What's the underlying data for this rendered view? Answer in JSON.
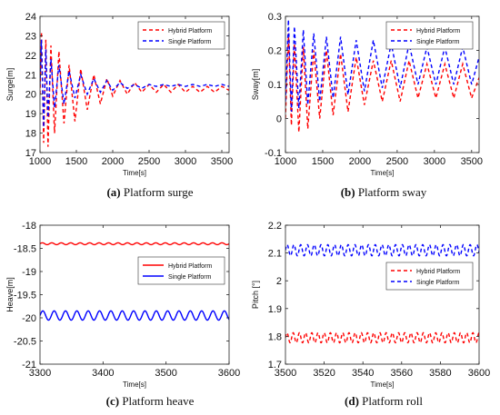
{
  "captions": [
    {
      "letter": "(a)",
      "text": "Platform surge"
    },
    {
      "letter": "(b)",
      "text": "Platform sway"
    },
    {
      "letter": "(c)",
      "text": "Platform heave"
    },
    {
      "letter": "(d)",
      "text": "Platform roll"
    }
  ],
  "chart_data": [
    {
      "type": "line",
      "xlabel": "Time[s]",
      "ylabel": "Surge[m]",
      "xlim": [
        1000,
        3600
      ],
      "ylim": [
        17,
        24
      ],
      "xticks": [
        1000,
        1500,
        2000,
        2500,
        3000,
        3500
      ],
      "yticks": [
        17,
        18,
        19,
        20,
        21,
        22,
        23,
        24
      ],
      "legend": "top-right",
      "grid": false,
      "series": [
        {
          "name": "Hybrid Platform",
          "color": "#ff0000",
          "dash": "dashed",
          "x": [
            1000,
            1020,
            1050,
            1080,
            1110,
            1150,
            1200,
            1260,
            1330,
            1400,
            1480,
            1560,
            1650,
            1740,
            1830,
            1920,
            2000,
            2100,
            2200,
            2300,
            2400,
            2500,
            2600,
            2700,
            2800,
            2900,
            3000,
            3100,
            3200,
            3300,
            3400,
            3500,
            3600
          ],
          "y": [
            20.0,
            23.2,
            17.5,
            22.8,
            17.3,
            22.5,
            18.0,
            22.2,
            18.5,
            21.5,
            18.6,
            21.3,
            19.2,
            21.0,
            19.5,
            20.8,
            19.9,
            20.7,
            20.0,
            20.6,
            20.1,
            20.5,
            20.1,
            20.5,
            20.1,
            20.5,
            20.1,
            20.4,
            20.1,
            20.4,
            20.1,
            20.4,
            20.2
          ]
        },
        {
          "name": "Single Platform",
          "color": "#0000ff",
          "dash": "dashed",
          "x": [
            1000,
            1020,
            1050,
            1080,
            1110,
            1150,
            1200,
            1260,
            1330,
            1400,
            1480,
            1560,
            1650,
            1740,
            1830,
            1920,
            2000,
            2100,
            2200,
            2300,
            2400,
            2500,
            2600,
            2700,
            2800,
            2900,
            3000,
            3100,
            3200,
            3300,
            3400,
            3500,
            3600
          ],
          "y": [
            20.5,
            22.8,
            18.3,
            22.3,
            18.8,
            21.8,
            19.3,
            21.5,
            19.5,
            21.2,
            19.8,
            21.0,
            20.0,
            20.8,
            20.1,
            20.7,
            20.2,
            20.6,
            20.3,
            20.5,
            20.3,
            20.5,
            20.4,
            20.5,
            20.4,
            20.5,
            20.4,
            20.5,
            20.4,
            20.5,
            20.4,
            20.5,
            20.4
          ]
        }
      ]
    },
    {
      "type": "line",
      "xlabel": "Time[s]",
      "ylabel": "Sway[m]",
      "xlim": [
        1000,
        3600
      ],
      "ylim": [
        -0.1,
        0.3
      ],
      "xticks": [
        1000,
        1500,
        2000,
        2500,
        3000,
        3500
      ],
      "yticks": [
        -0.1,
        0,
        0.1,
        0.2,
        0.3
      ],
      "legend": "top-right",
      "grid": false,
      "series": [
        {
          "name": "Hybrid Platform",
          "color": "#ff0000",
          "dash": "dashed",
          "x": [
            1000,
            1040,
            1080,
            1120,
            1180,
            1240,
            1300,
            1380,
            1460,
            1550,
            1640,
            1740,
            1840,
            1950,
            2060,
            2180,
            2300,
            2420,
            2540,
            2660,
            2780,
            2900,
            3020,
            3140,
            3260,
            3380,
            3500,
            3600
          ],
          "y": [
            0.0,
            0.25,
            -0.02,
            0.22,
            -0.04,
            0.21,
            -0.03,
            0.2,
            0.0,
            0.2,
            0.01,
            0.19,
            0.02,
            0.18,
            0.04,
            0.17,
            0.05,
            0.17,
            0.05,
            0.17,
            0.06,
            0.16,
            0.06,
            0.16,
            0.06,
            0.16,
            0.06,
            0.12
          ]
        },
        {
          "name": "Single Platform",
          "color": "#0000ff",
          "dash": "dashed",
          "x": [
            1000,
            1040,
            1080,
            1120,
            1180,
            1240,
            1300,
            1380,
            1460,
            1550,
            1640,
            1740,
            1840,
            1950,
            2060,
            2180,
            2300,
            2420,
            2540,
            2660,
            2780,
            2900,
            3020,
            3140,
            3260,
            3380,
            3500,
            3600
          ],
          "y": [
            0.05,
            0.29,
            0.02,
            0.27,
            0.03,
            0.26,
            0.04,
            0.25,
            0.05,
            0.24,
            0.06,
            0.24,
            0.07,
            0.23,
            0.08,
            0.23,
            0.09,
            0.22,
            0.09,
            0.22,
            0.1,
            0.21,
            0.1,
            0.21,
            0.1,
            0.21,
            0.1,
            0.18
          ]
        }
      ]
    },
    {
      "type": "line",
      "xlabel": "Time[s]",
      "ylabel": "Heave[m]",
      "xlim": [
        3300,
        3600
      ],
      "ylim": [
        -21,
        -18
      ],
      "xticks": [
        3300,
        3400,
        3500,
        3600
      ],
      "yticks": [
        -21,
        -20.5,
        -20,
        -19.5,
        -19,
        -18.5,
        -18
      ],
      "legend": "top-right",
      "grid": false,
      "series": [
        {
          "name": "Hybrid Platform",
          "color": "#ff0000",
          "dash": "solid",
          "mean": -18.4,
          "amplitude": 0.02,
          "period": 15
        },
        {
          "name": "Single Platform",
          "color": "#0000ff",
          "dash": "solid",
          "mean": -19.95,
          "amplitude": 0.1,
          "period": 18
        }
      ]
    },
    {
      "type": "line",
      "xlabel": "Time[s]",
      "ylabel": "Pitch [°]",
      "xlim": [
        3500,
        3600
      ],
      "ylim": [
        1.7,
        2.2
      ],
      "xticks": [
        3500,
        3520,
        3540,
        3560,
        3580,
        3600
      ],
      "yticks": [
        1.7,
        1.8,
        1.9,
        2,
        2.1,
        2.2
      ],
      "legend": "right",
      "grid": false,
      "series": [
        {
          "name": "Hybrid Platform",
          "color": "#ff0000",
          "dash": "dashed",
          "mean": 1.795,
          "amplitude": 0.018,
          "period": 3.2
        },
        {
          "name": "Single Platform",
          "color": "#0000ff",
          "dash": "dashed",
          "mean": 2.11,
          "amplitude": 0.02,
          "period": 3.5
        }
      ]
    }
  ]
}
